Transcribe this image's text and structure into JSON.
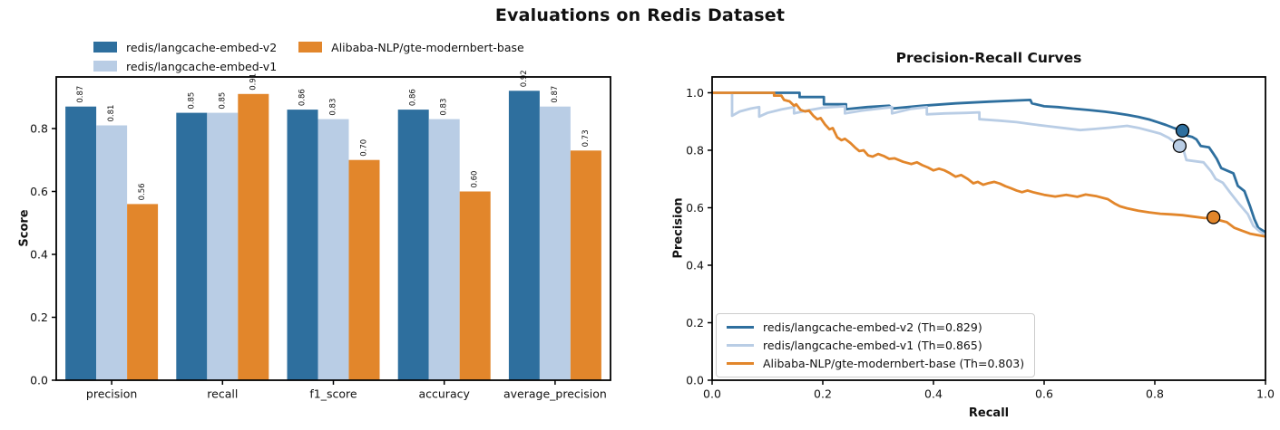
{
  "title": "Evaluations on Redis Dataset",
  "chart_data": [
    {
      "type": "bar",
      "title": "",
      "ylabel": "Score",
      "xlabel": "",
      "ylim": [
        0,
        0.964
      ],
      "yticks": [
        0.0,
        0.2,
        0.4,
        0.6,
        0.8
      ],
      "categories": [
        "precision",
        "recall",
        "f1_score",
        "accuracy",
        "average_precision"
      ],
      "legend_position": "upper-left-outside",
      "value_label_rotation": 90,
      "series": [
        {
          "name": "redis/langcache-embed-v2",
          "color": "#2e6f9e",
          "values": [
            0.87,
            0.85,
            0.86,
            0.86,
            0.92
          ]
        },
        {
          "name": "redis/langcache-embed-v1",
          "color": "#b9cde5",
          "values": [
            0.81,
            0.85,
            0.83,
            0.83,
            0.87
          ]
        },
        {
          "name": "Alibaba-NLP/gte-modernbert-base",
          "color": "#e2862b",
          "values": [
            0.56,
            0.91,
            0.7,
            0.6,
            0.73
          ]
        }
      ]
    },
    {
      "type": "line",
      "title": "Precision-Recall Curves",
      "xlabel": "Recall",
      "ylabel": "Precision",
      "xlim": [
        0,
        1.0
      ],
      "ylim": [
        0,
        1.055
      ],
      "xticks": [
        0.0,
        0.2,
        0.4,
        0.6,
        0.8,
        1.0
      ],
      "yticks": [
        0.0,
        0.2,
        0.4,
        0.6,
        0.8,
        1.0
      ],
      "legend_position": "lower-left",
      "series": [
        {
          "name": "redis/langcache-embed-v2 (Th=0.829)",
          "color": "#2e6f9e",
          "threshold_marker": [
            0.85,
            0.868
          ],
          "points": [
            [
              0,
              1
            ],
            [
              0.158,
              1
            ],
            [
              0.158,
              0.985
            ],
            [
              0.202,
              0.985
            ],
            [
              0.202,
              0.96
            ],
            [
              0.242,
              0.96
            ],
            [
              0.242,
              0.943
            ],
            [
              0.28,
              0.95
            ],
            [
              0.32,
              0.955
            ],
            [
              0.325,
              0.945
            ],
            [
              0.38,
              0.955
            ],
            [
              0.44,
              0.963
            ],
            [
              0.5,
              0.969
            ],
            [
              0.55,
              0.973
            ],
            [
              0.575,
              0.975
            ],
            [
              0.578,
              0.963
            ],
            [
              0.6,
              0.953
            ],
            [
              0.625,
              0.95
            ],
            [
              0.65,
              0.945
            ],
            [
              0.68,
              0.94
            ],
            [
              0.71,
              0.934
            ],
            [
              0.73,
              0.929
            ],
            [
              0.75,
              0.923
            ],
            [
              0.77,
              0.916
            ],
            [
              0.79,
              0.907
            ],
            [
              0.805,
              0.898
            ],
            [
              0.82,
              0.888
            ],
            [
              0.835,
              0.877
            ],
            [
              0.85,
              0.868
            ],
            [
              0.856,
              0.852
            ],
            [
              0.868,
              0.846
            ],
            [
              0.875,
              0.838
            ],
            [
              0.883,
              0.815
            ],
            [
              0.898,
              0.81
            ],
            [
              0.905,
              0.79
            ],
            [
              0.912,
              0.77
            ],
            [
              0.92,
              0.738
            ],
            [
              0.942,
              0.72
            ],
            [
              0.95,
              0.676
            ],
            [
              0.962,
              0.658
            ],
            [
              0.972,
              0.606
            ],
            [
              0.98,
              0.56
            ],
            [
              0.987,
              0.53
            ],
            [
              1,
              0.515
            ]
          ]
        },
        {
          "name": "redis/langcache-embed-v1 (Th=0.865)",
          "color": "#b9cde5",
          "threshold_marker": [
            0.845,
            0.815
          ],
          "points": [
            [
              0,
              1
            ],
            [
              0.036,
              1
            ],
            [
              0.036,
              0.92
            ],
            [
              0.05,
              0.935
            ],
            [
              0.07,
              0.945
            ],
            [
              0.085,
              0.95
            ],
            [
              0.085,
              0.917
            ],
            [
              0.1,
              0.93
            ],
            [
              0.125,
              0.942
            ],
            [
              0.148,
              0.95
            ],
            [
              0.148,
              0.928
            ],
            [
              0.17,
              0.938
            ],
            [
              0.2,
              0.948
            ],
            [
              0.24,
              0.953
            ],
            [
              0.24,
              0.928
            ],
            [
              0.27,
              0.938
            ],
            [
              0.31,
              0.947
            ],
            [
              0.325,
              0.95
            ],
            [
              0.325,
              0.928
            ],
            [
              0.36,
              0.944
            ],
            [
              0.388,
              0.95
            ],
            [
              0.388,
              0.925
            ],
            [
              0.42,
              0.928
            ],
            [
              0.46,
              0.93
            ],
            [
              0.483,
              0.932
            ],
            [
              0.483,
              0.908
            ],
            [
              0.52,
              0.903
            ],
            [
              0.55,
              0.898
            ],
            [
              0.58,
              0.89
            ],
            [
              0.61,
              0.883
            ],
            [
              0.64,
              0.876
            ],
            [
              0.665,
              0.87
            ],
            [
              0.69,
              0.874
            ],
            [
              0.72,
              0.879
            ],
            [
              0.75,
              0.885
            ],
            [
              0.77,
              0.878
            ],
            [
              0.79,
              0.868
            ],
            [
              0.81,
              0.858
            ],
            [
              0.825,
              0.843
            ],
            [
              0.845,
              0.815
            ],
            [
              0.852,
              0.8
            ],
            [
              0.857,
              0.766
            ],
            [
              0.888,
              0.758
            ],
            [
              0.902,
              0.726
            ],
            [
              0.91,
              0.7
            ],
            [
              0.923,
              0.687
            ],
            [
              0.936,
              0.653
            ],
            [
              0.953,
              0.612
            ],
            [
              0.968,
              0.578
            ],
            [
              0.978,
              0.537
            ],
            [
              0.99,
              0.517
            ],
            [
              1,
              0.505
            ]
          ]
        },
        {
          "name": "Alibaba-NLP/gte-modernbert-base (Th=0.803)",
          "color": "#e2862b",
          "threshold_marker": [
            0.906,
            0.567
          ],
          "points": [
            [
              0,
              1
            ],
            [
              0.112,
              1
            ],
            [
              0.112,
              0.99
            ],
            [
              0.125,
              0.99
            ],
            [
              0.13,
              0.975
            ],
            [
              0.14,
              0.97
            ],
            [
              0.148,
              0.955
            ],
            [
              0.152,
              0.96
            ],
            [
              0.16,
              0.94
            ],
            [
              0.168,
              0.935
            ],
            [
              0.175,
              0.938
            ],
            [
              0.183,
              0.92
            ],
            [
              0.19,
              0.908
            ],
            [
              0.196,
              0.912
            ],
            [
              0.204,
              0.89
            ],
            [
              0.212,
              0.873
            ],
            [
              0.218,
              0.877
            ],
            [
              0.226,
              0.845
            ],
            [
              0.234,
              0.835
            ],
            [
              0.24,
              0.84
            ],
            [
              0.25,
              0.825
            ],
            [
              0.258,
              0.81
            ],
            [
              0.266,
              0.797
            ],
            [
              0.274,
              0.8
            ],
            [
              0.282,
              0.782
            ],
            [
              0.29,
              0.778
            ],
            [
              0.3,
              0.787
            ],
            [
              0.31,
              0.78
            ],
            [
              0.32,
              0.77
            ],
            [
              0.33,
              0.772
            ],
            [
              0.345,
              0.76
            ],
            [
              0.36,
              0.752
            ],
            [
              0.37,
              0.758
            ],
            [
              0.38,
              0.748
            ],
            [
              0.39,
              0.74
            ],
            [
              0.4,
              0.73
            ],
            [
              0.41,
              0.736
            ],
            [
              0.42,
              0.73
            ],
            [
              0.43,
              0.72
            ],
            [
              0.44,
              0.708
            ],
            [
              0.45,
              0.714
            ],
            [
              0.462,
              0.7
            ],
            [
              0.472,
              0.685
            ],
            [
              0.48,
              0.69
            ],
            [
              0.49,
              0.68
            ],
            [
              0.5,
              0.686
            ],
            [
              0.51,
              0.69
            ],
            [
              0.52,
              0.684
            ],
            [
              0.53,
              0.675
            ],
            [
              0.54,
              0.668
            ],
            [
              0.55,
              0.66
            ],
            [
              0.56,
              0.654
            ],
            [
              0.57,
              0.66
            ],
            [
              0.58,
              0.654
            ],
            [
              0.6,
              0.645
            ],
            [
              0.62,
              0.639
            ],
            [
              0.64,
              0.645
            ],
            [
              0.66,
              0.638
            ],
            [
              0.675,
              0.646
            ],
            [
              0.695,
              0.64
            ],
            [
              0.715,
              0.63
            ],
            [
              0.727,
              0.615
            ],
            [
              0.737,
              0.605
            ],
            [
              0.75,
              0.598
            ],
            [
              0.77,
              0.59
            ],
            [
              0.79,
              0.584
            ],
            [
              0.81,
              0.579
            ],
            [
              0.83,
              0.577
            ],
            [
              0.85,
              0.574
            ],
            [
              0.87,
              0.569
            ],
            [
              0.89,
              0.564
            ],
            [
              0.906,
              0.567
            ],
            [
              0.918,
              0.556
            ],
            [
              0.93,
              0.55
            ],
            [
              0.944,
              0.53
            ],
            [
              0.958,
              0.52
            ],
            [
              0.972,
              0.51
            ],
            [
              0.985,
              0.505
            ],
            [
              1,
              0.5
            ]
          ]
        }
      ]
    }
  ]
}
